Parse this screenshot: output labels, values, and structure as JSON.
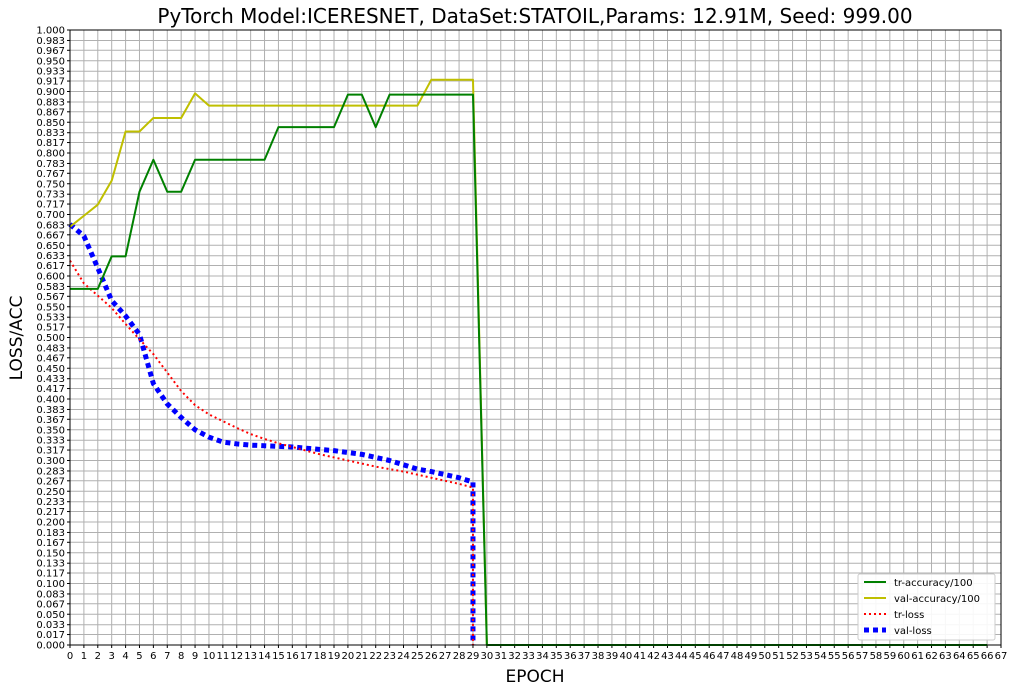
{
  "chart_data": {
    "type": "line",
    "title": "PyTorch Model:ICERESNET, DataSet:STATOIL,Params: 12.91M, Seed: 999.00",
    "xlabel": "EPOCH",
    "ylabel": "LOSS/ACC",
    "xlim": [
      0,
      67
    ],
    "ylim": [
      0,
      1
    ],
    "grid": true,
    "legend_position": "lower right",
    "x_ticks": [
      0,
      1,
      2,
      3,
      4,
      5,
      6,
      7,
      8,
      9,
      10,
      11,
      12,
      13,
      14,
      15,
      16,
      17,
      18,
      19,
      20,
      21,
      22,
      23,
      24,
      25,
      26,
      27,
      28,
      29,
      30,
      31,
      32,
      33,
      34,
      35,
      36,
      37,
      38,
      39,
      40,
      41,
      42,
      43,
      44,
      45,
      46,
      47,
      48,
      49,
      50,
      51,
      52,
      53,
      54,
      55,
      56,
      57,
      58,
      59,
      60,
      61,
      62,
      63,
      64,
      65,
      66,
      67
    ],
    "y_ticks": [
      "0.000",
      "0.017",
      "0.033",
      "0.050",
      "0.067",
      "0.083",
      "0.100",
      "0.117",
      "0.133",
      "0.150",
      "0.167",
      "0.183",
      "0.200",
      "0.217",
      "0.233",
      "0.250",
      "0.267",
      "0.283",
      "0.300",
      "0.317",
      "0.333",
      "0.350",
      "0.367",
      "0.383",
      "0.400",
      "0.417",
      "0.433",
      "0.450",
      "0.467",
      "0.483",
      "0.500",
      "0.517",
      "0.533",
      "0.550",
      "0.567",
      "0.583",
      "0.600",
      "0.617",
      "0.633",
      "0.650",
      "0.667",
      "0.683",
      "0.700",
      "0.717",
      "0.733",
      "0.750",
      "0.767",
      "0.783",
      "0.800",
      "0.817",
      "0.833",
      "0.850",
      "0.867",
      "0.883",
      "0.900",
      "0.917",
      "0.933",
      "0.950",
      "0.967",
      "0.983",
      "1.000"
    ],
    "series": [
      {
        "name": "tr-accuracy/100",
        "color": "#008000",
        "style": "solid",
        "x": [
          0,
          1,
          2,
          3,
          4,
          5,
          6,
          7,
          8,
          9,
          10,
          11,
          12,
          13,
          14,
          15,
          16,
          17,
          18,
          19,
          20,
          21,
          22,
          23,
          24,
          25,
          26,
          27,
          28,
          29,
          30,
          31,
          32,
          33,
          34,
          35,
          36,
          37,
          38,
          39,
          40,
          41,
          42,
          43,
          44,
          45,
          46,
          47,
          48,
          49,
          50,
          51,
          52,
          53,
          54,
          55,
          56,
          57,
          58,
          59,
          60,
          61,
          62,
          63,
          64,
          65,
          66
        ],
        "values": [
          0.579,
          0.579,
          0.579,
          0.632,
          0.632,
          0.737,
          0.789,
          0.737,
          0.737,
          0.789,
          0.789,
          0.789,
          0.789,
          0.789,
          0.789,
          0.842,
          0.842,
          0.842,
          0.842,
          0.842,
          0.895,
          0.895,
          0.842,
          0.895,
          0.895,
          0.895,
          0.895,
          0.895,
          0.895,
          0.895,
          0.0,
          0.0,
          0.0,
          0.0,
          0.0,
          0.0,
          0.0,
          0.0,
          0.0,
          0.0,
          0.0,
          0.0,
          0.0,
          0.0,
          0.0,
          0.0,
          0.0,
          0.0,
          0.0,
          0.0,
          0.0,
          0.0,
          0.0,
          0.0,
          0.0,
          0.0,
          0.0,
          0.0,
          0.0,
          0.0,
          0.0,
          0.0,
          0.0,
          0.0,
          0.0,
          0.0,
          0.0
        ]
      },
      {
        "name": "val-accuracy/100",
        "color": "#bfbf00",
        "style": "solid",
        "x": [
          0,
          1,
          2,
          3,
          4,
          5,
          6,
          7,
          8,
          9,
          10,
          11,
          12,
          13,
          14,
          15,
          16,
          17,
          18,
          19,
          20,
          21,
          22,
          23,
          24,
          25,
          26,
          27,
          28,
          29,
          30,
          31,
          32,
          33,
          34,
          35,
          36,
          37,
          38,
          39,
          40,
          41,
          42,
          43,
          44,
          45,
          46,
          47,
          48,
          49,
          50,
          51,
          52,
          53,
          54,
          55,
          56,
          57,
          58,
          59,
          60,
          61,
          62,
          63,
          64,
          65,
          66
        ],
        "values": [
          0.68,
          0.698,
          0.716,
          0.755,
          0.835,
          0.835,
          0.857,
          0.857,
          0.857,
          0.897,
          0.877,
          0.877,
          0.877,
          0.877,
          0.877,
          0.877,
          0.877,
          0.877,
          0.877,
          0.877,
          0.877,
          0.877,
          0.877,
          0.877,
          0.877,
          0.877,
          0.919,
          0.919,
          0.919,
          0.919,
          0.0,
          0.0,
          0.0,
          0.0,
          0.0,
          0.0,
          0.0,
          0.0,
          0.0,
          0.0,
          0.0,
          0.0,
          0.0,
          0.0,
          0.0,
          0.0,
          0.0,
          0.0,
          0.0,
          0.0,
          0.0,
          0.0,
          0.0,
          0.0,
          0.0,
          0.0,
          0.0,
          0.0,
          0.0,
          0.0,
          0.0,
          0.0,
          0.0,
          0.0,
          0.0,
          0.0,
          0.0
        ]
      },
      {
        "name": "tr-loss",
        "color": "#ff0000",
        "style": "dotted",
        "x": [
          0,
          1,
          2,
          3,
          4,
          5,
          6,
          7,
          8,
          9,
          10,
          11,
          12,
          13,
          14,
          15,
          16,
          17,
          18,
          19,
          20,
          21,
          22,
          23,
          24,
          25,
          26,
          27,
          28,
          29,
          29.0
        ],
        "values": [
          0.625,
          0.588,
          0.568,
          0.548,
          0.522,
          0.497,
          0.473,
          0.443,
          0.413,
          0.39,
          0.375,
          0.364,
          0.353,
          0.343,
          0.335,
          0.328,
          0.322,
          0.316,
          0.31,
          0.305,
          0.3,
          0.295,
          0.29,
          0.286,
          0.282,
          0.277,
          0.272,
          0.267,
          0.262,
          0.256,
          0.0
        ]
      },
      {
        "name": "val-loss",
        "color": "#0000ff",
        "style": "dotted-thick",
        "x": [
          0,
          1,
          2,
          3,
          4,
          5,
          6,
          7,
          8,
          9,
          10,
          11,
          12,
          13,
          14,
          15,
          16,
          17,
          18,
          19,
          20,
          21,
          22,
          23,
          24,
          25,
          26,
          27,
          28,
          29,
          29.0
        ],
        "values": [
          0.684,
          0.665,
          0.613,
          0.56,
          0.535,
          0.505,
          0.425,
          0.392,
          0.37,
          0.35,
          0.338,
          0.33,
          0.327,
          0.325,
          0.324,
          0.323,
          0.322,
          0.32,
          0.318,
          0.316,
          0.313,
          0.31,
          0.305,
          0.3,
          0.293,
          0.286,
          0.282,
          0.277,
          0.272,
          0.265,
          0.0
        ]
      }
    ]
  }
}
